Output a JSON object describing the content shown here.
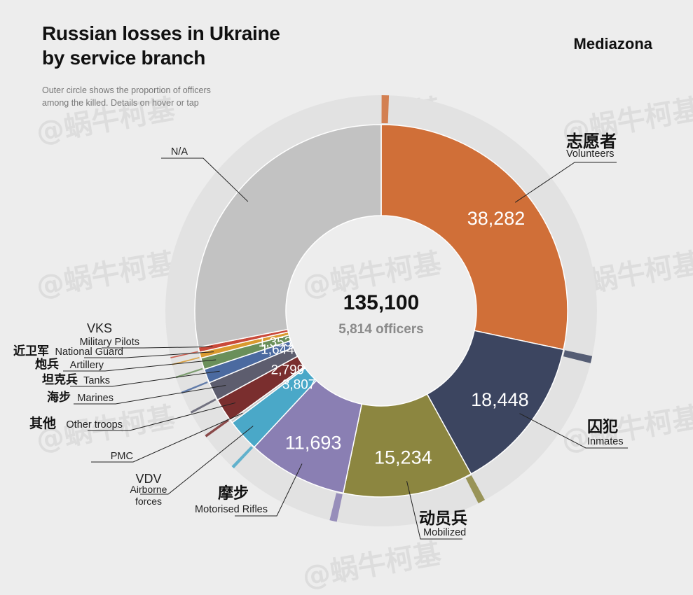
{
  "header": {
    "title": "Russian losses in Ukraine\nby service branch",
    "brand": "Mediazona",
    "subtitle": "Outer circle shows the proportion of officers\namong the killed. Details on hover or tap"
  },
  "center": {
    "total": "135,100",
    "officers": "5,814 officers"
  },
  "watermark": "@蜗牛柯基",
  "chart_data": {
    "type": "pie",
    "total": 135100,
    "officers_total": 5814,
    "slices": [
      {
        "name": "Volunteers",
        "name_zh": "志愿者",
        "value": 38282,
        "value_label": "38,282",
        "color": "#d06f38"
      },
      {
        "name": "Inmates",
        "name_zh": "囚犯",
        "value": 18448,
        "value_label": "18,448",
        "color": "#3c4560"
      },
      {
        "name": "Mobilized",
        "name_zh": "动员兵",
        "value": 15234,
        "value_label": "15,234",
        "color": "#8c8640"
      },
      {
        "name": "Motorised Rifles",
        "name_zh": "摩步",
        "value": 11693,
        "value_label": "11,693",
        "color": "#8a7fb3"
      },
      {
        "name": "Airborne forces",
        "name_prefix": "VDV",
        "value": 3807,
        "value_label": "3,807",
        "color": "#4aa8c8"
      },
      {
        "name": "PMC",
        "value": 340,
        "value_label": "",
        "color": "#c8c8c8"
      },
      {
        "name": "Other troops",
        "name_zh": "其他",
        "value": 2799,
        "value_label": "2,799",
        "color": "#7a2e2e"
      },
      {
        "name": "Marines",
        "name_zh": "海步",
        "value": 2200,
        "value_label": "",
        "color": "#5d5d6e"
      },
      {
        "name": "Tanks",
        "name_zh": "坦克兵",
        "value": 1644,
        "value_label": "1,644",
        "color": "#4b6aa0"
      },
      {
        "name": "Artillery",
        "name_zh": "炮兵",
        "value": 1353,
        "value_label": "1,353",
        "color": "#6a8f5a"
      },
      {
        "name": "National Guard",
        "name_zh": "近卫军",
        "value": 700,
        "value_label": "",
        "color": "#d99a2f"
      },
      {
        "name": "Military Pilots",
        "name_prefix": "VKS",
        "value": 600,
        "value_label": "",
        "color": "#c94a3a"
      },
      {
        "name": "N/A",
        "value": 38000,
        "value_label": "",
        "color": "#c2c2c2"
      }
    ]
  }
}
